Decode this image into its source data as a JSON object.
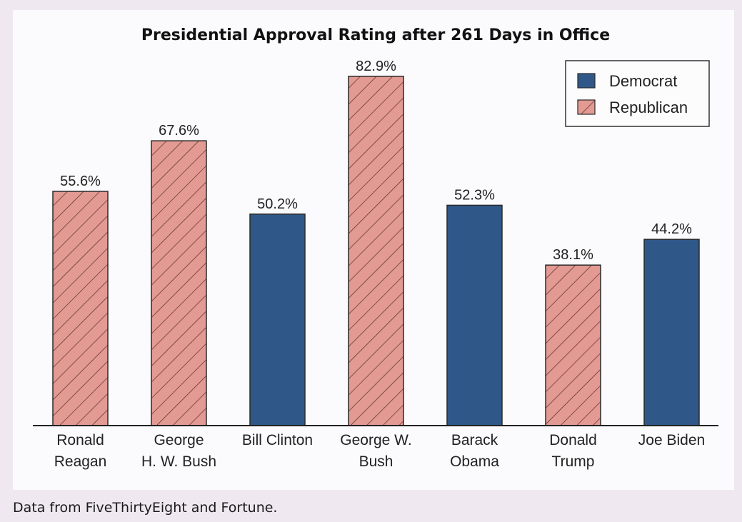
{
  "chart_data": {
    "type": "bar",
    "title": "Presidential Approval Rating after 261 Days in Office",
    "categories": [
      "Ronald\nReagan",
      "George\nH. W. Bush",
      "Bill Clinton",
      "George W.\nBush",
      "Barack\nObama",
      "Donald\nTrump",
      "Joe Biden"
    ],
    "values": [
      55.6,
      67.6,
      50.2,
      82.9,
      52.3,
      38.1,
      44.2
    ],
    "value_labels": [
      "55.6%",
      "67.6%",
      "50.2%",
      "82.9%",
      "52.3%",
      "38.1%",
      "44.2%"
    ],
    "party": [
      "Republican",
      "Republican",
      "Democrat",
      "Republican",
      "Democrat",
      "Republican",
      "Democrat"
    ],
    "legend": [
      {
        "name": "Democrat",
        "color": "#2f5889",
        "pattern": "solid"
      },
      {
        "name": "Republican",
        "color": "#e29a93",
        "pattern": "hatched"
      }
    ],
    "legend_position": "top-right",
    "ylim": [
      0,
      100
    ],
    "grid": false
  },
  "source_note": "Data from FiveThirtyEight and Fortune."
}
